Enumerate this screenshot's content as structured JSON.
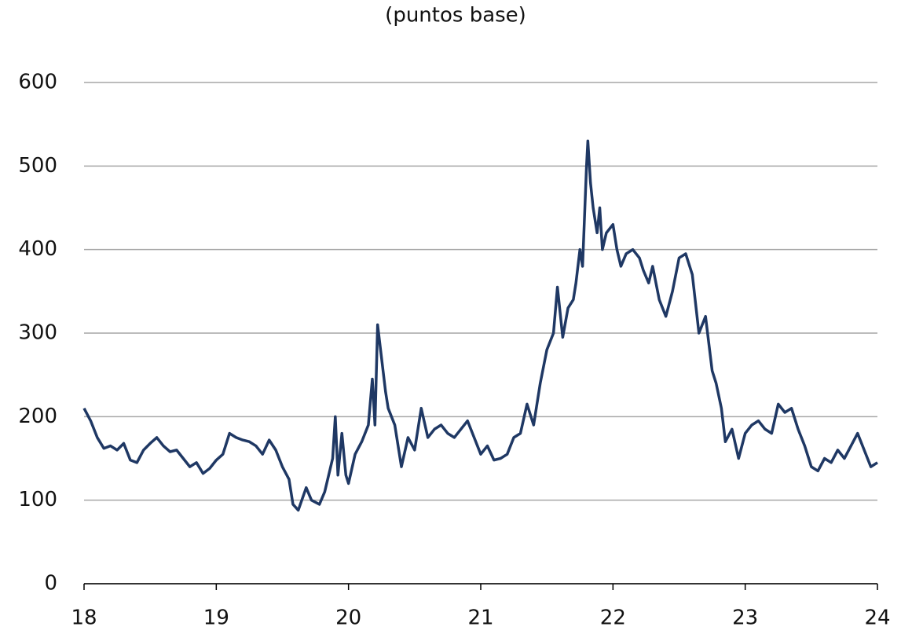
{
  "chart_data": {
    "type": "line",
    "title": "(puntos base)",
    "x": [
      18.0,
      18.05,
      18.1,
      18.15,
      18.2,
      18.25,
      18.3,
      18.35,
      18.4,
      18.45,
      18.5,
      18.55,
      18.6,
      18.65,
      18.7,
      18.75,
      18.8,
      18.85,
      18.9,
      18.95,
      19.0,
      19.05,
      19.1,
      19.15,
      19.2,
      19.25,
      19.3,
      19.35,
      19.4,
      19.45,
      19.5,
      19.55,
      19.58,
      19.62,
      19.68,
      19.72,
      19.78,
      19.82,
      19.88,
      19.9,
      19.92,
      19.95,
      19.98,
      20.0,
      20.05,
      20.1,
      20.15,
      20.18,
      20.2,
      20.22,
      20.25,
      20.28,
      20.3,
      20.35,
      20.4,
      20.45,
      20.5,
      20.55,
      20.6,
      20.65,
      20.7,
      20.75,
      20.8,
      20.85,
      20.9,
      20.95,
      21.0,
      21.05,
      21.1,
      21.15,
      21.2,
      21.25,
      21.3,
      21.35,
      21.4,
      21.45,
      21.5,
      21.55,
      21.58,
      21.62,
      21.66,
      21.7,
      21.72,
      21.75,
      21.77,
      21.8,
      21.81,
      21.83,
      21.85,
      21.88,
      21.9,
      21.92,
      21.95,
      22.0,
      22.03,
      22.06,
      22.1,
      22.15,
      22.2,
      22.23,
      22.27,
      22.3,
      22.35,
      22.4,
      22.45,
      22.5,
      22.55,
      22.6,
      22.65,
      22.7,
      22.75,
      22.78,
      22.82,
      22.85,
      22.9,
      22.95,
      23.0,
      23.05,
      23.1,
      23.15,
      23.2,
      23.25,
      23.3,
      23.35,
      23.4,
      23.45,
      23.5,
      23.55,
      23.6,
      23.65,
      23.7,
      23.75,
      23.8,
      23.85,
      23.9,
      23.95,
      24.0
    ],
    "series": [
      {
        "color": "#1f3864",
        "values": [
          210,
          195,
          175,
          162,
          165,
          160,
          168,
          148,
          145,
          160,
          168,
          175,
          165,
          158,
          160,
          150,
          140,
          145,
          132,
          138,
          148,
          155,
          180,
          175,
          172,
          170,
          165,
          155,
          172,
          160,
          140,
          125,
          95,
          88,
          115,
          100,
          95,
          110,
          150,
          200,
          130,
          180,
          130,
          120,
          155,
          170,
          190,
          245,
          190,
          310,
          270,
          230,
          210,
          190,
          140,
          175,
          160,
          210,
          175,
          185,
          190,
          180,
          175,
          185,
          195,
          175,
          155,
          165,
          148,
          150,
          155,
          175,
          180,
          215,
          190,
          240,
          280,
          300,
          355,
          295,
          330,
          340,
          360,
          400,
          380,
          500,
          530,
          480,
          450,
          420,
          450,
          400,
          420,
          430,
          400,
          380,
          395,
          400,
          390,
          375,
          360,
          380,
          340,
          320,
          350,
          390,
          395,
          370,
          300,
          320,
          255,
          240,
          210,
          170,
          185,
          150,
          180,
          190,
          195,
          185,
          180,
          215,
          205,
          210,
          185,
          165,
          140,
          135,
          150,
          145,
          160,
          150,
          165,
          180,
          160,
          140,
          145
        ]
      }
    ],
    "xlim": [
      18,
      24
    ],
    "xticks": [
      18,
      19,
      20,
      21,
      22,
      23,
      24
    ],
    "ylim": [
      0,
      600
    ],
    "yticks": [
      0,
      100,
      200,
      300,
      400,
      500,
      600
    ],
    "grid": true
  }
}
